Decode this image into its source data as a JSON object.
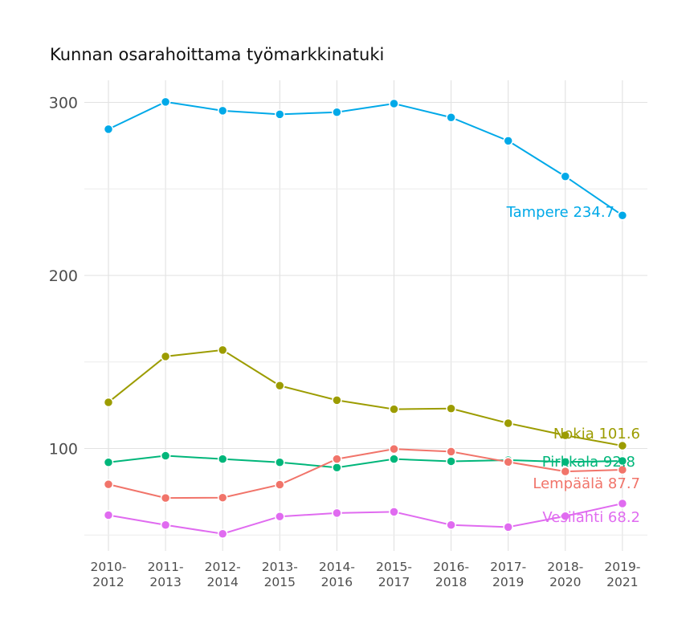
{
  "title": "Kunnan osarahoittama työmarkkinatuki",
  "chart_data": {
    "type": "line",
    "title": "Kunnan osarahoittama työmarkkinatuki",
    "xlabel": "",
    "ylabel": "",
    "categories": [
      [
        "2010-",
        "2012"
      ],
      [
        "2011-",
        "2013"
      ],
      [
        "2012-",
        "2014"
      ],
      [
        "2013-",
        "2015"
      ],
      [
        "2014-",
        "2016"
      ],
      [
        "2015-",
        "2017"
      ],
      [
        "2016-",
        "2018"
      ],
      [
        "2017-",
        "2019"
      ],
      [
        "2018-",
        "2020"
      ],
      [
        "2019-",
        "2021"
      ]
    ],
    "ylim": [
      45,
      310
    ],
    "yticks": [
      100,
      200,
      300
    ],
    "grid": true,
    "series": [
      {
        "name": "Tampere",
        "color": "#00A9E8",
        "end_label": "Tampere 234.7",
        "values": [
          284.5,
          300.3,
          295.2,
          293.1,
          294.3,
          299.3,
          291.3,
          277.8,
          257.2,
          234.7
        ]
      },
      {
        "name": "Nokia",
        "color": "#9C9C00",
        "end_label": "Nokia 101.6",
        "values": [
          126.7,
          153.2,
          156.9,
          136.3,
          127.9,
          122.7,
          123.1,
          114.6,
          107.6,
          101.6
        ]
      },
      {
        "name": "Pirkkala",
        "color": "#00B67A",
        "end_label": "Pirkkala 92.8",
        "values": [
          92.0,
          95.8,
          93.9,
          92.0,
          89.0,
          93.9,
          92.6,
          93.3,
          92.2,
          92.8
        ]
      },
      {
        "name": "Lempäälä",
        "color": "#F1746A",
        "end_label": "Lempäälä 87.7",
        "values": [
          79.3,
          71.4,
          71.6,
          79.1,
          93.9,
          99.7,
          98.2,
          92.2,
          86.7,
          87.7
        ]
      },
      {
        "name": "Vesilahti",
        "color": "#E06BF0",
        "end_label": "Vesilahti 68.2",
        "values": [
          61.5,
          55.8,
          50.7,
          60.7,
          62.7,
          63.4,
          55.8,
          54.6,
          60.9,
          68.2
        ]
      }
    ]
  }
}
